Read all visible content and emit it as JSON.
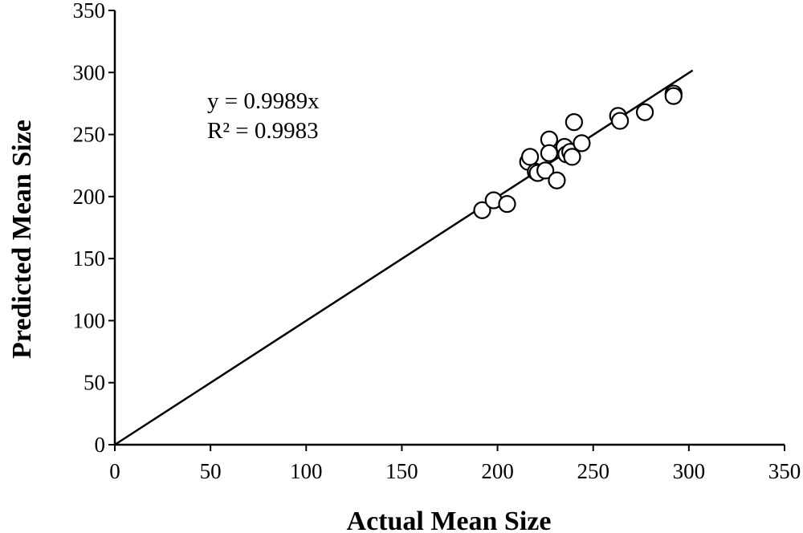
{
  "chart_data": {
    "type": "scatter",
    "xlabel": "Actual Mean Size",
    "ylabel": "Predicted Mean Size",
    "xlim": [
      0,
      350
    ],
    "ylim": [
      0,
      350
    ],
    "xticks": [
      0,
      50,
      100,
      150,
      200,
      250,
      300,
      350
    ],
    "yticks": [
      0,
      50,
      100,
      150,
      200,
      250,
      300,
      350
    ],
    "grid": false,
    "marker": "open-circle",
    "trendline": {
      "slope": 0.9989,
      "intercept": 0,
      "x_range": [
        0,
        302
      ]
    },
    "annotations": [
      "y = 0.9989x",
      "R² = 0.9983"
    ],
    "points": [
      [
        192,
        189
      ],
      [
        198,
        197
      ],
      [
        205,
        194
      ],
      [
        216,
        228
      ],
      [
        217,
        232
      ],
      [
        220,
        220
      ],
      [
        221,
        219
      ],
      [
        225,
        221
      ],
      [
        227,
        246
      ],
      [
        227,
        235
      ],
      [
        231,
        213
      ],
      [
        235,
        240
      ],
      [
        236,
        234
      ],
      [
        238,
        236
      ],
      [
        239,
        232
      ],
      [
        240,
        260
      ],
      [
        244,
        243
      ],
      [
        263,
        265
      ],
      [
        264,
        261
      ],
      [
        277,
        268
      ],
      [
        292,
        283
      ],
      [
        292,
        281
      ]
    ]
  }
}
